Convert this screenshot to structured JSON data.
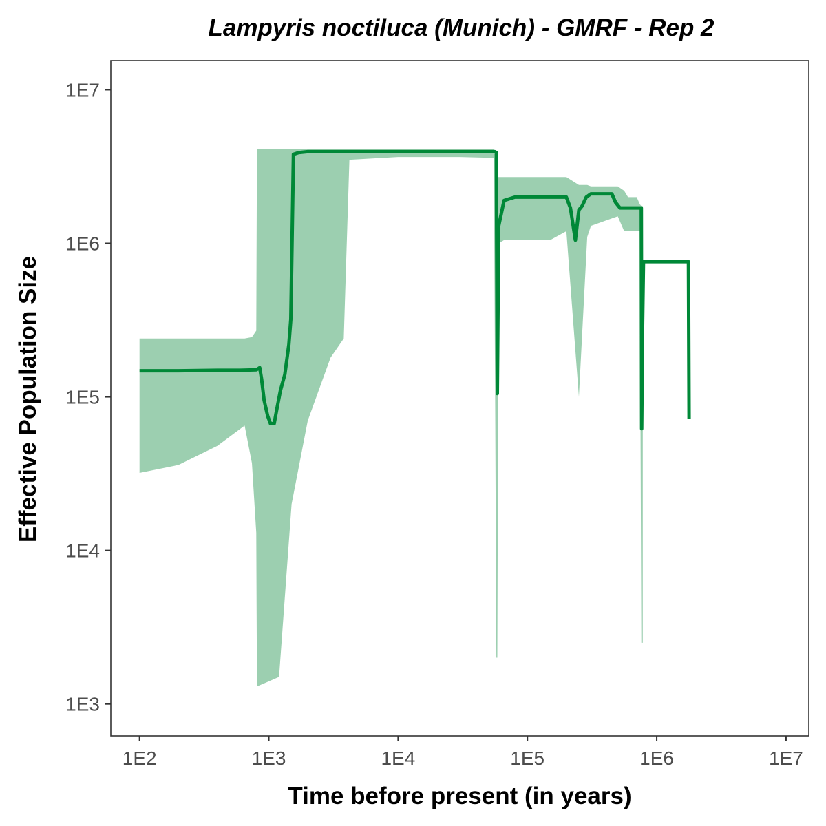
{
  "chart_data": {
    "type": "line",
    "title": "Lampyris noctiluca (Munich) - GMRF - Rep 2",
    "xlabel": "Time before present (in years)",
    "ylabel": "Effective Population Size",
    "x_scale": "log10",
    "y_scale": "log10",
    "xlim": [
      60,
      15000000
    ],
    "ylim": [
      620,
      15500000
    ],
    "x_ticks": [
      {
        "value": 100,
        "label": "1E2"
      },
      {
        "value": 1000,
        "label": "1E3"
      },
      {
        "value": 10000,
        "label": "1E4"
      },
      {
        "value": 100000,
        "label": "1E5"
      },
      {
        "value": 1000000,
        "label": "1E6"
      },
      {
        "value": 10000000,
        "label": "1E7"
      }
    ],
    "y_ticks": [
      {
        "value": 1000,
        "label": "1E3"
      },
      {
        "value": 10000,
        "label": "1E4"
      },
      {
        "value": 100000,
        "label": "1E5"
      },
      {
        "value": 1000000,
        "label": "1E6"
      },
      {
        "value": 10000000,
        "label": "1E7"
      }
    ],
    "grid": false,
    "legend": "none",
    "colors": {
      "line": "#008837",
      "ribbon": "#9ccfb0"
    },
    "series": [
      {
        "kind": "median",
        "x": [
          100,
          200,
          400,
          600,
          800,
          850,
          880,
          920,
          980,
          1030,
          1100,
          1150,
          1230,
          1330,
          1430,
          1480,
          1550,
          1700,
          2000,
          4000,
          10000,
          30000,
          56000,
          57500,
          58500,
          60000,
          66000,
          80000,
          100000,
          150000,
          200000,
          215000,
          235000,
          250000,
          265000,
          285000,
          310000,
          360000,
          450000,
          480000,
          520000,
          600000,
          760000,
          765000,
          775000,
          790000,
          1000000,
          1700000,
          1760000,
          1780000
        ],
        "y": [
          148000,
          148000,
          149000,
          149000,
          150000,
          155000,
          130000,
          95000,
          75000,
          67000,
          67000,
          82000,
          110000,
          140000,
          220000,
          320000,
          3800000,
          3900000,
          3950000,
          3950000,
          3950000,
          3950000,
          3950000,
          3900000,
          105000,
          1300000,
          1900000,
          2000000,
          2000000,
          2000000,
          2000000,
          1700000,
          1050000,
          1650000,
          1750000,
          2000000,
          2100000,
          2100000,
          2100000,
          1850000,
          1700000,
          1700000,
          1700000,
          62000,
          250000,
          760000,
          760000,
          760000,
          760000,
          72000
        ]
      },
      {
        "kind": "interval",
        "x": [
          100,
          200,
          400,
          650,
          740,
          800,
          810,
          1200,
          1500,
          2000,
          3000,
          3800,
          4200,
          10000,
          30000,
          55000,
          56500,
          57500,
          58500,
          60000,
          66000,
          100000,
          150000,
          200000,
          250000,
          290000,
          310000,
          500000,
          560000,
          600000,
          700000,
          740000,
          760000,
          770000,
          780000
        ],
        "upper": [
          240000,
          240000,
          240000,
          240000,
          245000,
          270000,
          4100000,
          4100000,
          4100000,
          4100000,
          4100000,
          4100000,
          4100000,
          4100000,
          4100000,
          4100000,
          4000000,
          2700000,
          2700000,
          2700000,
          2700000,
          2700000,
          2700000,
          2700000,
          2400000,
          2400000,
          2350000,
          2350000,
          2200000,
          2000000,
          2000000,
          1800000,
          1750000,
          1750000,
          1750000
        ],
        "lower": [
          32000,
          36000,
          48000,
          65000,
          37000,
          13000,
          1300,
          1500,
          20000,
          70000,
          180000,
          240000,
          3500000,
          3650000,
          3650000,
          3600000,
          60000,
          2000,
          2000,
          1000000,
          1050000,
          1050000,
          1050000,
          1200000,
          100000,
          1100000,
          1300000,
          1500000,
          1200000,
          1200000,
          1200000,
          1200000,
          2500,
          2500,
          2500
        ]
      }
    ]
  }
}
